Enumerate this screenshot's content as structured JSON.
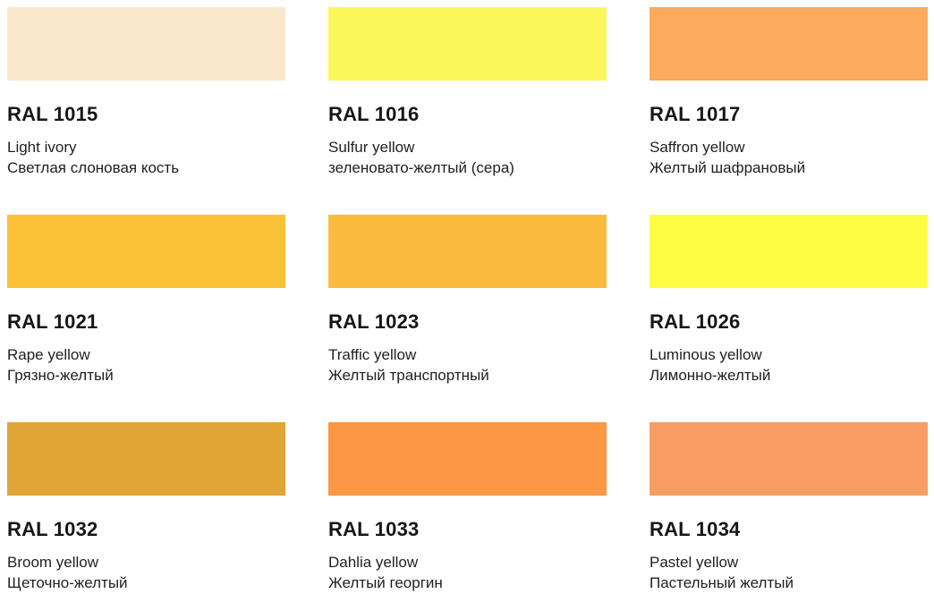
{
  "page": {
    "background": "#ffffff",
    "title_color": "#161616",
    "text_color": "#1f1f1f"
  },
  "grid": {
    "columns": 3,
    "cells": [
      {
        "code": "RAL 1015",
        "name_en": "Light ivory",
        "name_ru": "Светлая слоновая кость",
        "color": "#FAE8CC"
      },
      {
        "code": "RAL 1016",
        "name_en": "Sulfur yellow",
        "name_ru": "зеленовато-желтый (сера)",
        "color": "#FAF75A"
      },
      {
        "code": "RAL 1017",
        "name_en": "Saffron yellow",
        "name_ru": "Желтый шафрановый",
        "color": "#FBAA5E"
      },
      {
        "code": "RAL 1021",
        "name_en": "Rape yellow",
        "name_ru": "Грязно-желтый",
        "color": "#FBC136"
      },
      {
        "code": "RAL 1023",
        "name_en": "Traffic yellow",
        "name_ru": "Желтый транспортный",
        "color": "#FBBC3E"
      },
      {
        "code": "RAL 1026",
        "name_en": "Luminous yellow",
        "name_ru": "Лимонно-желтый",
        "color": "#FDFD45"
      },
      {
        "code": "RAL 1032",
        "name_en": "Broom yellow",
        "name_ru": "Щеточно-желтый",
        "color": "#E1A535"
      },
      {
        "code": "RAL 1033",
        "name_en": "Dahlia yellow",
        "name_ru": "Желтый георгин",
        "color": "#FC9743"
      },
      {
        "code": "RAL 1034",
        "name_en": "Pastel yellow",
        "name_ru": "Пастельный желтый",
        "color": "#F79D66"
      }
    ]
  }
}
